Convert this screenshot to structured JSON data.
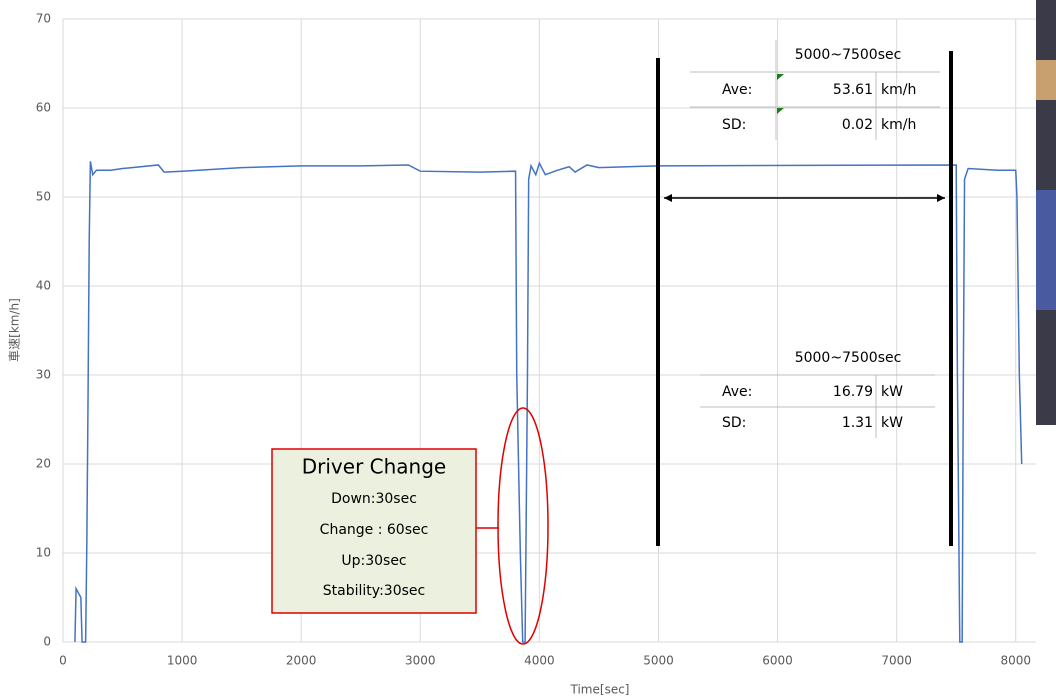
{
  "chart_data": {
    "type": "line",
    "x_label": "Time[sec]",
    "y_label": "車速[km/h]",
    "x": [
      0,
      100,
      110,
      130,
      150,
      160,
      190,
      200,
      210,
      220,
      230,
      250,
      280,
      400,
      500,
      800,
      850,
      1000,
      1500,
      2000,
      2500,
      2900,
      3000,
      3500,
      3800,
      3810,
      3840,
      3860,
      3880,
      3890,
      3900,
      3910,
      3930,
      3970,
      4000,
      4050,
      4150,
      4250,
      4300,
      4400,
      4500,
      5000,
      7500,
      7510,
      7530,
      7550,
      7560,
      7570,
      7600,
      7850,
      8000,
      8010,
      8030,
      8050
    ],
    "values": [
      null,
      0,
      6,
      5.5,
      5,
      0,
      0,
      11,
      27,
      45,
      54,
      52.5,
      53,
      53,
      53.2,
      53.6,
      52.8,
      52.9,
      53.3,
      53.5,
      53.5,
      53.6,
      52.9,
      52.8,
      52.9,
      30,
      10,
      0,
      0,
      15,
      30,
      52,
      53.5,
      52.5,
      53.8,
      52.5,
      53,
      53.4,
      52.8,
      53.6,
      53.3,
      53.5,
      53.6,
      30,
      0,
      0,
      30,
      52,
      53.2,
      53,
      53,
      50,
      30,
      20
    ],
    "color": "#4472c4",
    "xlim": [
      0,
      8170
    ],
    "xticks": [
      0,
      1000,
      2000,
      3000,
      4000,
      5000,
      6000,
      7000,
      8000
    ],
    "ylim": [
      0,
      70
    ],
    "yticks": [
      0,
      10,
      20,
      30,
      40,
      50,
      60,
      70
    ],
    "grid": true,
    "tables": [
      {
        "title": "5000~7500sec",
        "rows": [
          [
            "Ave:",
            "53.61",
            "km/h"
          ],
          [
            "SD:",
            "0.02",
            "km/h"
          ]
        ]
      },
      {
        "title": "5000~7500sec",
        "rows": [
          [
            "Ave:",
            "16.79",
            "kW"
          ],
          [
            "SD:",
            "1.31",
            "kW"
          ]
        ]
      }
    ],
    "callout": {
      "title": "Driver Change",
      "lines": [
        "Down:30sec",
        "Change : 60sec",
        "Up:30sec",
        "Stability:30sec"
      ]
    }
  }
}
